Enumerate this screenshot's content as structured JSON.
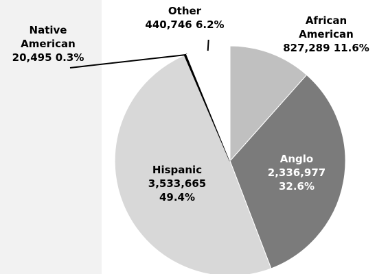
{
  "chart_data": {
    "type": "pie",
    "title": "",
    "slices": [
      {
        "label": "African American",
        "value": 827289,
        "value_text": "827,289",
        "percent_text": "11.6%",
        "color": "#c0c0c0"
      },
      {
        "label": "Anglo",
        "value": 2336977,
        "value_text": "2,336,977",
        "percent_text": "32.6%",
        "color": "#7b7b7b"
      },
      {
        "label": "Hispanic",
        "value": 3533665,
        "value_text": "3,533,665",
        "percent_text": "49.4%",
        "color": "#d8d8d8"
      },
      {
        "label": "Native American",
        "value": 20495,
        "value_text": "20,495",
        "percent_text": "0.3%",
        "color": "#000000"
      },
      {
        "label": "Other",
        "value": 440746,
        "value_text": "440,746",
        "percent_text": "6.2%",
        "color": "#ffffff"
      }
    ]
  },
  "labels": {
    "african_american": {
      "line1": "African",
      "line2": "American",
      "line3": "827,289 11.6%"
    },
    "anglo": {
      "line1": "Anglo",
      "line2": "2,336,977",
      "line3": "32.6%"
    },
    "hispanic": {
      "line1": "Hispanic",
      "line2": "3,533,665",
      "line3": "49.4%"
    },
    "native_american": {
      "line1": "Native",
      "line2": "American",
      "line3": "20,495  0.3%"
    },
    "other": {
      "line1": "Other",
      "line2": "440,746 6.2%"
    }
  },
  "colors": {
    "panel_background": "#f2f2f2",
    "slice_outline": "#ffffff"
  }
}
